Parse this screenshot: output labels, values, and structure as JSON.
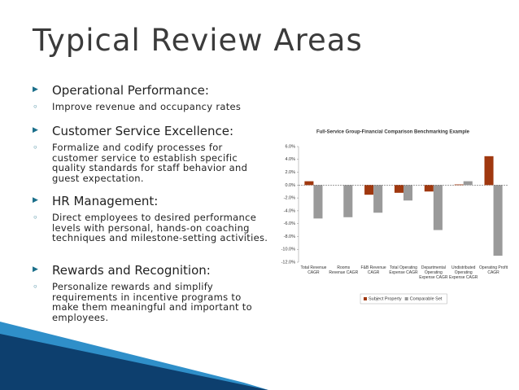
{
  "title": "Typical Review Areas",
  "bullets": [
    {
      "heading": "Operational Performance:",
      "sub": "Improve revenue and occupancy rates"
    },
    {
      "heading": "Customer Service Excellence:",
      "sub": "Formalize and codify processes for customer service to establish specific quality standards for staff behavior and guest expectation."
    },
    {
      "heading": "HR Management:",
      "sub": "Direct employees to desired performance levels with personal, hands-on coaching techniques and milestone-setting activities."
    },
    {
      "heading": "Rewards and Recognition:",
      "sub": "Personalize rewards and simplify requirements in incentive programs to make them meaningful and important to employees."
    }
  ],
  "chart_data": {
    "type": "bar",
    "title": "Full-Service Group-Financial Comparison Benchmarking Example",
    "categories": [
      "Total Revenue CAGR",
      "Rooms Revenue CAGR",
      "F&B Revenue CAGR",
      "Total Operating Expense CAGR",
      "Departmental Operating Expense CAGR",
      "Undistributed Operating Expense CAGR",
      "Operating Profit CAGR"
    ],
    "series": [
      {
        "name": "Subject Property",
        "color": "#a0380f",
        "values": [
          0.6,
          0,
          -1.5,
          -1.2,
          -1.0,
          0.1,
          4.5
        ]
      },
      {
        "name": "Comparable Set",
        "color": "#9a9a9a",
        "values": [
          -5.2,
          -5.0,
          -4.3,
          -2.4,
          -7.0,
          0.6,
          -11.0
        ]
      }
    ],
    "ylim": [
      -12,
      6
    ],
    "yticks": [
      {
        "value": 6,
        "label": "6.0%"
      },
      {
        "value": 4,
        "label": "4.0%"
      },
      {
        "value": 2,
        "label": "2.0%"
      },
      {
        "value": 0,
        "label": "0.0%"
      },
      {
        "value": -2,
        "label": "-2.0%"
      },
      {
        "value": -4,
        "label": "-4.0%"
      },
      {
        "value": -6,
        "label": "-6.0%"
      },
      {
        "value": -8,
        "label": "-8.0%"
      },
      {
        "value": -10,
        "label": "-10.0%"
      },
      {
        "value": -12,
        "label": "-12.0%"
      }
    ],
    "legend": "bottom"
  }
}
